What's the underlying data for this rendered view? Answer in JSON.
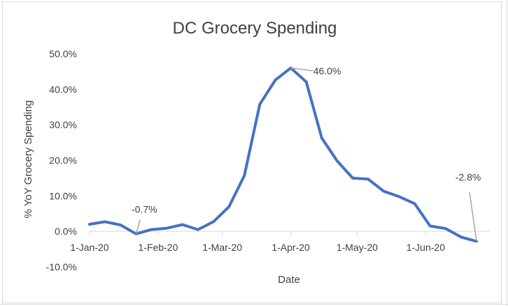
{
  "chart_data": {
    "type": "line",
    "title": "DC Grocery Spending",
    "xlabel": "Date",
    "ylabel": "% YoY Grocery Spending",
    "ylim": [
      -10,
      50
    ],
    "yticks": [
      "50.0%",
      "40.0%",
      "30.0%",
      "20.0%",
      "10.0%",
      "0.0%",
      "-10.0%"
    ],
    "ytick_values": [
      50,
      40,
      30,
      20,
      10,
      0,
      -10
    ],
    "xlim": [
      "2020-01-01",
      "2020-06-30"
    ],
    "xticks": [
      {
        "label": "1-Jan-20",
        "date": "2020-01-01"
      },
      {
        "label": "1-Feb-20",
        "date": "2020-02-01"
      },
      {
        "label": "1-Mar-20",
        "date": "2020-03-01"
      },
      {
        "label": "1-Apr-20",
        "date": "2020-04-01"
      },
      {
        "label": "1-May-20",
        "date": "2020-05-01"
      },
      {
        "label": "1-Jun-20",
        "date": "2020-06-01"
      }
    ],
    "grid": false,
    "line_color": "#4472C4",
    "series": [
      {
        "values": [
          {
            "x": "2020-01-01",
            "y": 2.0
          },
          {
            "x": "2020-01-08",
            "y": 2.7
          },
          {
            "x": "2020-01-15",
            "y": 1.8
          },
          {
            "x": "2020-01-22",
            "y": -0.7
          },
          {
            "x": "2020-01-29",
            "y": 0.5
          },
          {
            "x": "2020-02-05",
            "y": 0.9
          },
          {
            "x": "2020-02-12",
            "y": 1.9
          },
          {
            "x": "2020-02-19",
            "y": 0.5
          },
          {
            "x": "2020-02-26",
            "y": 2.7
          },
          {
            "x": "2020-03-04",
            "y": 6.9
          },
          {
            "x": "2020-03-11",
            "y": 15.7
          },
          {
            "x": "2020-03-18",
            "y": 35.8
          },
          {
            "x": "2020-03-25",
            "y": 42.6
          },
          {
            "x": "2020-04-01",
            "y": 46.0
          },
          {
            "x": "2020-04-08",
            "y": 42.1
          },
          {
            "x": "2020-04-15",
            "y": 26.3
          },
          {
            "x": "2020-04-22",
            "y": 19.8
          },
          {
            "x": "2020-04-29",
            "y": 15.0
          },
          {
            "x": "2020-05-06",
            "y": 14.7
          },
          {
            "x": "2020-05-13",
            "y": 11.3
          },
          {
            "x": "2020-05-20",
            "y": 9.8
          },
          {
            "x": "2020-05-27",
            "y": 7.8
          },
          {
            "x": "2020-06-03",
            "y": 1.5
          },
          {
            "x": "2020-06-10",
            "y": 0.8
          },
          {
            "x": "2020-06-17",
            "y": -1.6
          },
          {
            "x": "2020-06-24",
            "y": -2.8
          }
        ]
      }
    ],
    "annotations": [
      {
        "text": "-0.7%",
        "x": "2020-01-22",
        "y": -0.7
      },
      {
        "text": "46.0%",
        "x": "2020-04-01",
        "y": 46.0
      },
      {
        "text": "-2.8%",
        "x": "2020-06-24",
        "y": -2.8
      }
    ]
  }
}
